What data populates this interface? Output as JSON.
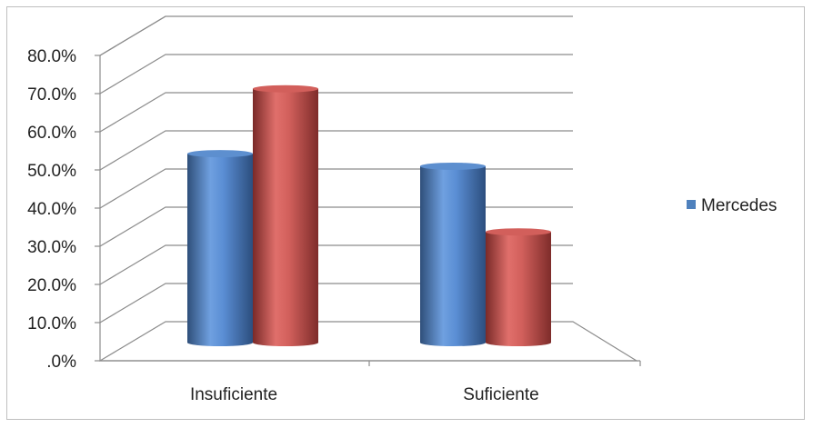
{
  "chart_data": {
    "type": "bar",
    "style": "3d-cylinder",
    "categories": [
      "Insuficiente",
      "Suficiente"
    ],
    "series": [
      {
        "name": "Mercedes",
        "values": [
          0.495,
          0.462
        ],
        "color": "#4f81bd"
      },
      {
        "values": [
          0.665,
          0.29
        ],
        "color": "#c0504d"
      }
    ],
    "y_tick_labels": [
      ".0%",
      "10.0%",
      "20.0%",
      "30.0%",
      "40.0%",
      "50.0%",
      "60.0%",
      "70.0%",
      "80.0%"
    ],
    "ylim": [
      0,
      0.8
    ],
    "grid": true,
    "legend": {
      "position": "right",
      "entries": [
        "Mercedes"
      ]
    },
    "title": "",
    "xlabel": "",
    "ylabel": ""
  }
}
